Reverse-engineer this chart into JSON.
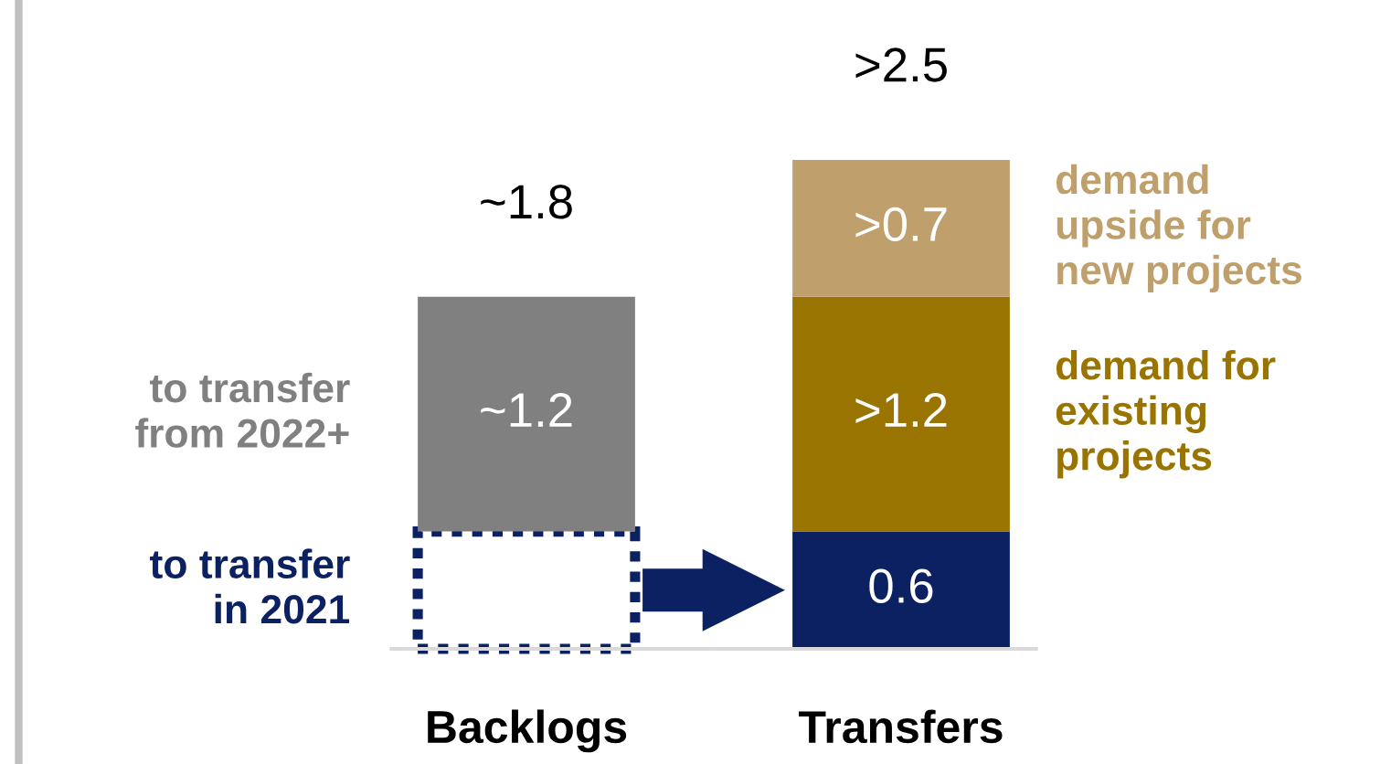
{
  "chart_data": {
    "type": "bar",
    "stacked": true,
    "categories": [
      "Backlogs",
      "Transfers"
    ],
    "series": [
      {
        "name": "to transfer in 2021",
        "color": "#0b2161",
        "line_style": "dotted",
        "values": [
          0.6,
          null
        ],
        "value_labels": [
          null,
          null
        ]
      },
      {
        "color": "#0b2161",
        "values": [
          null,
          0.6
        ],
        "value_labels": [
          null,
          "0.6"
        ]
      },
      {
        "name": "to transfer from 2022+",
        "color": "#808080",
        "values": [
          1.2,
          null
        ],
        "value_labels": [
          "~1.2",
          null
        ]
      },
      {
        "name": "demand for existing projects",
        "color": "#9a7400",
        "values": [
          null,
          1.2
        ],
        "value_labels": [
          null,
          ">1.2"
        ]
      },
      {
        "name": "demand upside for new projects",
        "color": "#bfa06c",
        "values": [
          null,
          0.7
        ],
        "value_labels": [
          null,
          ">0.7"
        ]
      }
    ],
    "totals": [
      "~1.8",
      ">2.5"
    ]
  }
}
